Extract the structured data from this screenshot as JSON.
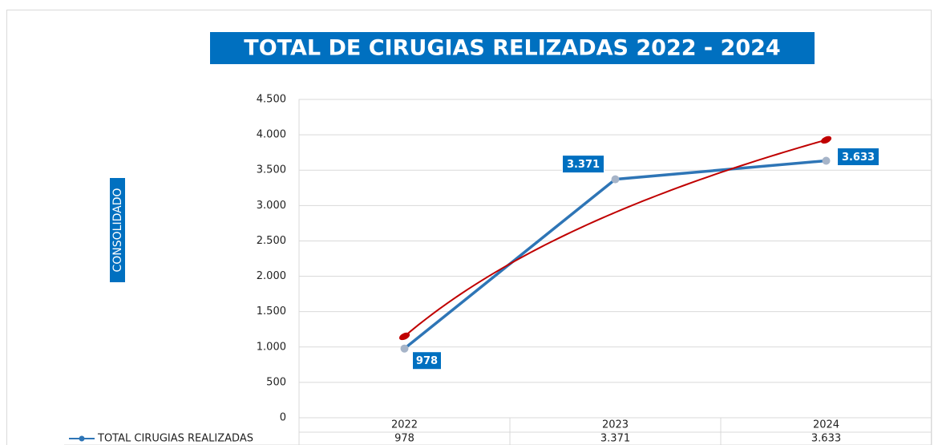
{
  "chart_data": {
    "type": "line",
    "title": "TOTAL DE CIRUGIAS RELIZADAS 2022 - 2024",
    "y_label": "CONSOLIDADO",
    "categories": [
      "2022",
      "2023",
      "2024"
    ],
    "series": [
      {
        "name": "TOTAL CIRUGIAS REALIZADAS",
        "color": "#2e75b6",
        "values": [
          978,
          3371,
          3633
        ],
        "value_labels": [
          "978",
          "3.371",
          "3.633"
        ]
      }
    ],
    "ylim": [
      0,
      4500
    ],
    "yticks": [
      0,
      500,
      {
        "value": 1000,
        "label": "1.000"
      },
      {
        "value": 1500,
        "label": "1.500"
      },
      {
        "value": 2000,
        "label": "2.000"
      },
      {
        "value": 2500,
        "label": "2.500"
      },
      {
        "value": 3000,
        "label": "3.000"
      },
      {
        "value": 3500,
        "label": "3.500"
      },
      {
        "value": 4000,
        "label": "4.000"
      },
      {
        "value": 4500,
        "label": "4.500"
      }
    ],
    "grid": true,
    "data_table": true,
    "trendline": "logarithmic",
    "trendline_color": "#c00000"
  }
}
